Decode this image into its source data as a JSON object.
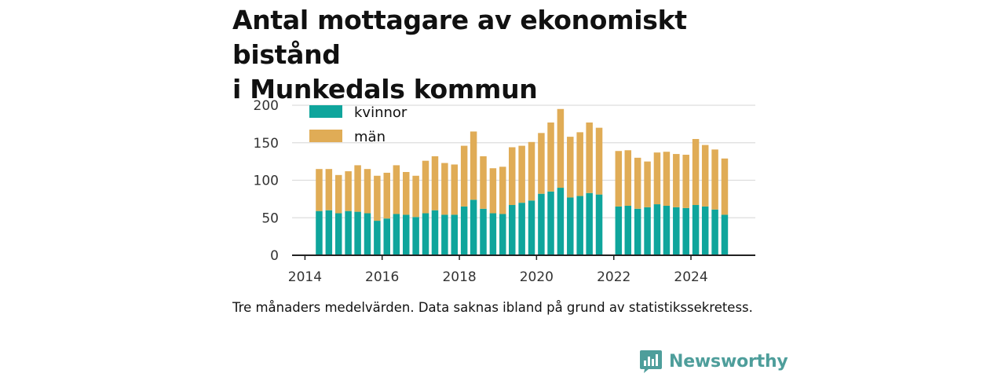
{
  "title_lines": [
    "Antal mottagare av ekonomiskt bistånd",
    "i Munkedals kommun"
  ],
  "caption": "Tre månaders medelvärden. Data saknas ibland på grund av statistikssekretess.",
  "brand": {
    "name": "Newsworthy",
    "icon": "newsworthy-logo-icon",
    "color": "#4e9e9b"
  },
  "colors": {
    "kvinnor": "#0fa59c",
    "man": "#e0ac56",
    "grid": "#dddddd",
    "axis": "#222222"
  },
  "chart_data": {
    "type": "bar",
    "stacked": true,
    "title": "Antal mottagare av ekonomiskt bistånd i Munkedals kommun",
    "xlabel": "",
    "ylabel": "",
    "ylim": [
      0,
      200
    ],
    "yticks": [
      0,
      50,
      100,
      150,
      200
    ],
    "xlim": [
      "2013-09-01",
      "2025-09-01"
    ],
    "xticks": [
      {
        "label": "2014",
        "date": "2014-01-01"
      },
      {
        "label": "2016",
        "date": "2016-01-01"
      },
      {
        "label": "2018",
        "date": "2018-01-01"
      },
      {
        "label": "2020",
        "date": "2020-01-01"
      },
      {
        "label": "2022",
        "date": "2022-01-01"
      },
      {
        "label": "2024",
        "date": "2024-01-01"
      }
    ],
    "grid": true,
    "legend_position": "top-left",
    "categories": [
      "2014-05",
      "2014-08",
      "2014-11",
      "2015-02",
      "2015-05",
      "2015-08",
      "2015-11",
      "2016-02",
      "2016-05",
      "2016-08",
      "2016-11",
      "2017-02",
      "2017-05",
      "2017-08",
      "2017-11",
      "2018-02",
      "2018-05",
      "2018-08",
      "2018-11",
      "2019-02",
      "2019-05",
      "2019-08",
      "2019-11",
      "2020-02",
      "2020-05",
      "2020-08",
      "2020-11",
      "2021-02",
      "2021-05",
      "2021-08",
      "2021-11",
      "2022-02",
      "2022-05",
      "2022-08",
      "2022-11",
      "2023-02",
      "2023-05",
      "2023-08",
      "2023-11",
      "2024-02",
      "2024-05",
      "2024-08",
      "2024-11"
    ],
    "series": [
      {
        "name": "kvinnor",
        "color": "#0fa59c",
        "values": [
          59,
          60,
          56,
          59,
          58,
          56,
          46,
          49,
          55,
          54,
          51,
          56,
          60,
          54,
          54,
          65,
          74,
          62,
          56,
          55,
          67,
          70,
          73,
          82,
          85,
          90,
          77,
          79,
          83,
          81,
          null,
          65,
          66,
          62,
          64,
          68,
          66,
          64,
          63,
          67,
          65,
          61,
          54
        ]
      },
      {
        "name": "män",
        "color": "#e0ac56",
        "values": [
          56,
          55,
          51,
          53,
          62,
          59,
          60,
          61,
          65,
          57,
          55,
          70,
          72,
          69,
          67,
          81,
          91,
          70,
          60,
          63,
          77,
          76,
          78,
          81,
          92,
          105,
          81,
          85,
          94,
          89,
          null,
          74,
          74,
          68,
          61,
          69,
          72,
          71,
          71,
          88,
          82,
          80,
          75
        ]
      }
    ]
  }
}
